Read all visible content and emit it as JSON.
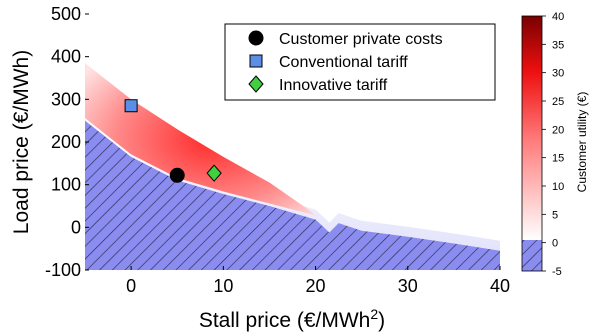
{
  "chart_data": {
    "type": "heatmap",
    "xlabel": "Stall price (€/MWh",
    "xlabel_sup": "2",
    "xlabel_end": ")",
    "ylabel": "Load price (€/MWh)",
    "xlim": [
      -5,
      40
    ],
    "ylim": [
      -100,
      500
    ],
    "xticks": [
      0,
      10,
      20,
      30,
      40
    ],
    "yticks": [
      -100,
      0,
      100,
      200,
      300,
      400,
      500
    ],
    "colorbar": {
      "label": "Customer utility (€)",
      "ticks": [
        -5,
        0,
        5,
        10,
        15,
        20,
        25,
        30,
        35,
        40
      ],
      "range": [
        -5,
        40
      ],
      "colors": {
        "max": "#7a0000",
        "mid": "#ff1a1a",
        "low": "#ffffff",
        "negative": "#8c8cf0"
      }
    },
    "feasible_region_boundary": {
      "x": [
        -5,
        0,
        5,
        10,
        15,
        20,
        21.5,
        22.5,
        25,
        30,
        35,
        40
      ],
      "y": [
        250,
        165,
        110,
        78,
        50,
        18,
        -12,
        10,
        -8,
        -22,
        -38,
        -55
      ]
    },
    "utility_band": {
      "upper_x": [
        -5,
        0,
        5,
        10,
        15,
        19
      ],
      "upper_y": [
        385,
        300,
        230,
        165,
        105,
        45
      ],
      "peak_value": 40
    },
    "series": [
      {
        "name": "Customer private costs",
        "marker": "circle",
        "color": "#000000",
        "x": [
          5
        ],
        "y": [
          122
        ]
      },
      {
        "name": "Conventional tariff",
        "marker": "square",
        "color": "#5b8fe6",
        "x": [
          0
        ],
        "y": [
          285
        ]
      },
      {
        "name": "Innovative tariff",
        "marker": "diamond",
        "color": "#3fcf3f",
        "x": [
          9
        ],
        "y": [
          127
        ]
      }
    ],
    "legend_position": "top-right"
  }
}
